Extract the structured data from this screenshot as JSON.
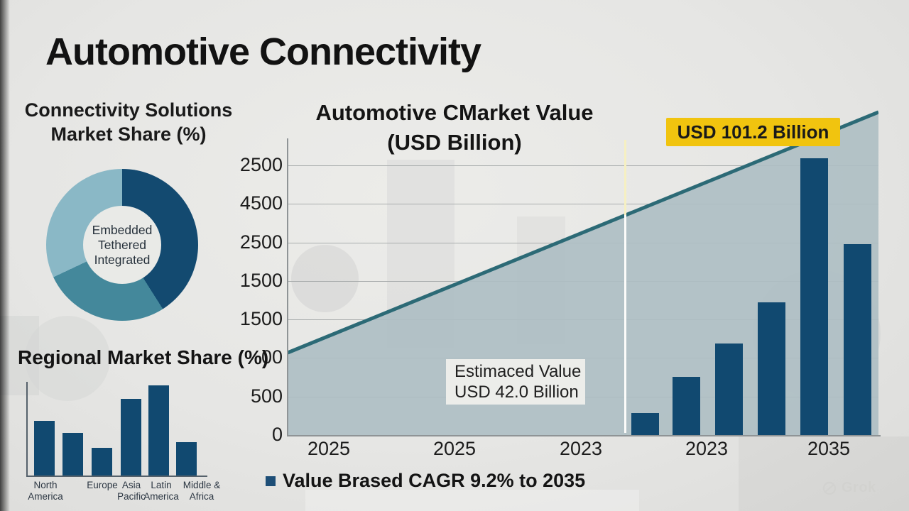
{
  "page": {
    "title": "Automotive Connectivity",
    "watermark": "Grok",
    "background_color": "#e6e6e4"
  },
  "donut_section": {
    "heading_line1": "Connectivity Solutions",
    "heading_line2": "Market Share (%)",
    "center_labels": [
      "Embedded",
      "Tethered",
      "Integrated"
    ]
  },
  "regional_section": {
    "heading": "Regional Market Share (%)",
    "category_lines": [
      [
        "North",
        "America"
      ],
      [
        "Europe",
        ""
      ],
      [
        "Asia",
        "Pacific"
      ],
      [
        "Latin",
        "America"
      ],
      [
        "Middle &",
        "Africa"
      ]
    ]
  },
  "main_chart": {
    "heading_line1": "Automotive CMarket Value",
    "heading_line2": "(USD Billion)",
    "highlight_label": "USD 101.2 Billion",
    "estimate_line1": "Estimaced Value",
    "estimate_line2": "USD 42.0 Billion",
    "legend_label": "Value Brased CAGR 9.2% to 2035"
  },
  "colors": {
    "bar_blue": "#114970",
    "donut_dark": "#134a70",
    "donut_teal": "#44889b",
    "donut_light": "#8ab8c6",
    "area_fill": "#b0c1c6",
    "area_line": "#2c6a76",
    "highlight_yellow": "#f1c40f",
    "axis_gray": "#8f9496"
  },
  "chart_data": [
    {
      "type": "pie",
      "variant": "donut",
      "title": "Connectivity Solutions Market Share (%)",
      "labels": [
        "Embedded",
        "Tethered",
        "Integrated"
      ],
      "values": [
        41,
        27,
        32
      ],
      "colors": [
        "#134a70",
        "#44889b",
        "#8ab8c6"
      ],
      "note": "values estimated from arc angles; no numeric labels shown in image"
    },
    {
      "type": "bar",
      "title": "Regional Market Share (%)",
      "categories": [
        "North America",
        "Europe",
        "Asia Pacific",
        "Latin America",
        "Middle & Africa"
      ],
      "values_rel": [
        61,
        47,
        31,
        85,
        100,
        37
      ],
      "bar_color": "#114970",
      "note": "six bars drawn but only five category labels shown; heights relative to tallest bar = 100; no y-axis scale shown"
    },
    {
      "type": "area",
      "title": "Automotive CMarket Value (USD Billion)",
      "start_value": 42.0,
      "end_value": 101.2,
      "x_ticks": [
        "2025",
        "2025",
        "2023",
        "2023",
        "2035"
      ],
      "y_ticks": [
        "2500",
        "4500",
        "2500",
        "1500",
        "1500",
        "00",
        "500",
        "0"
      ],
      "overlay_bars_rel": [
        8,
        21,
        33,
        48,
        100,
        69
      ],
      "area_fill": "#b0c1c6",
      "line_color": "#2c6a76",
      "annotations": [
        "USD 101.2 Billion",
        "Estimaced Value USD 42.0 Billion"
      ],
      "legend": [
        "Value Brased CAGR 9.2% to 2035"
      ],
      "grid": true,
      "note": "y-axis tick labels are inconsistent AI-generated values; area rises from 42.0 to 101.2 USD billion"
    }
  ]
}
